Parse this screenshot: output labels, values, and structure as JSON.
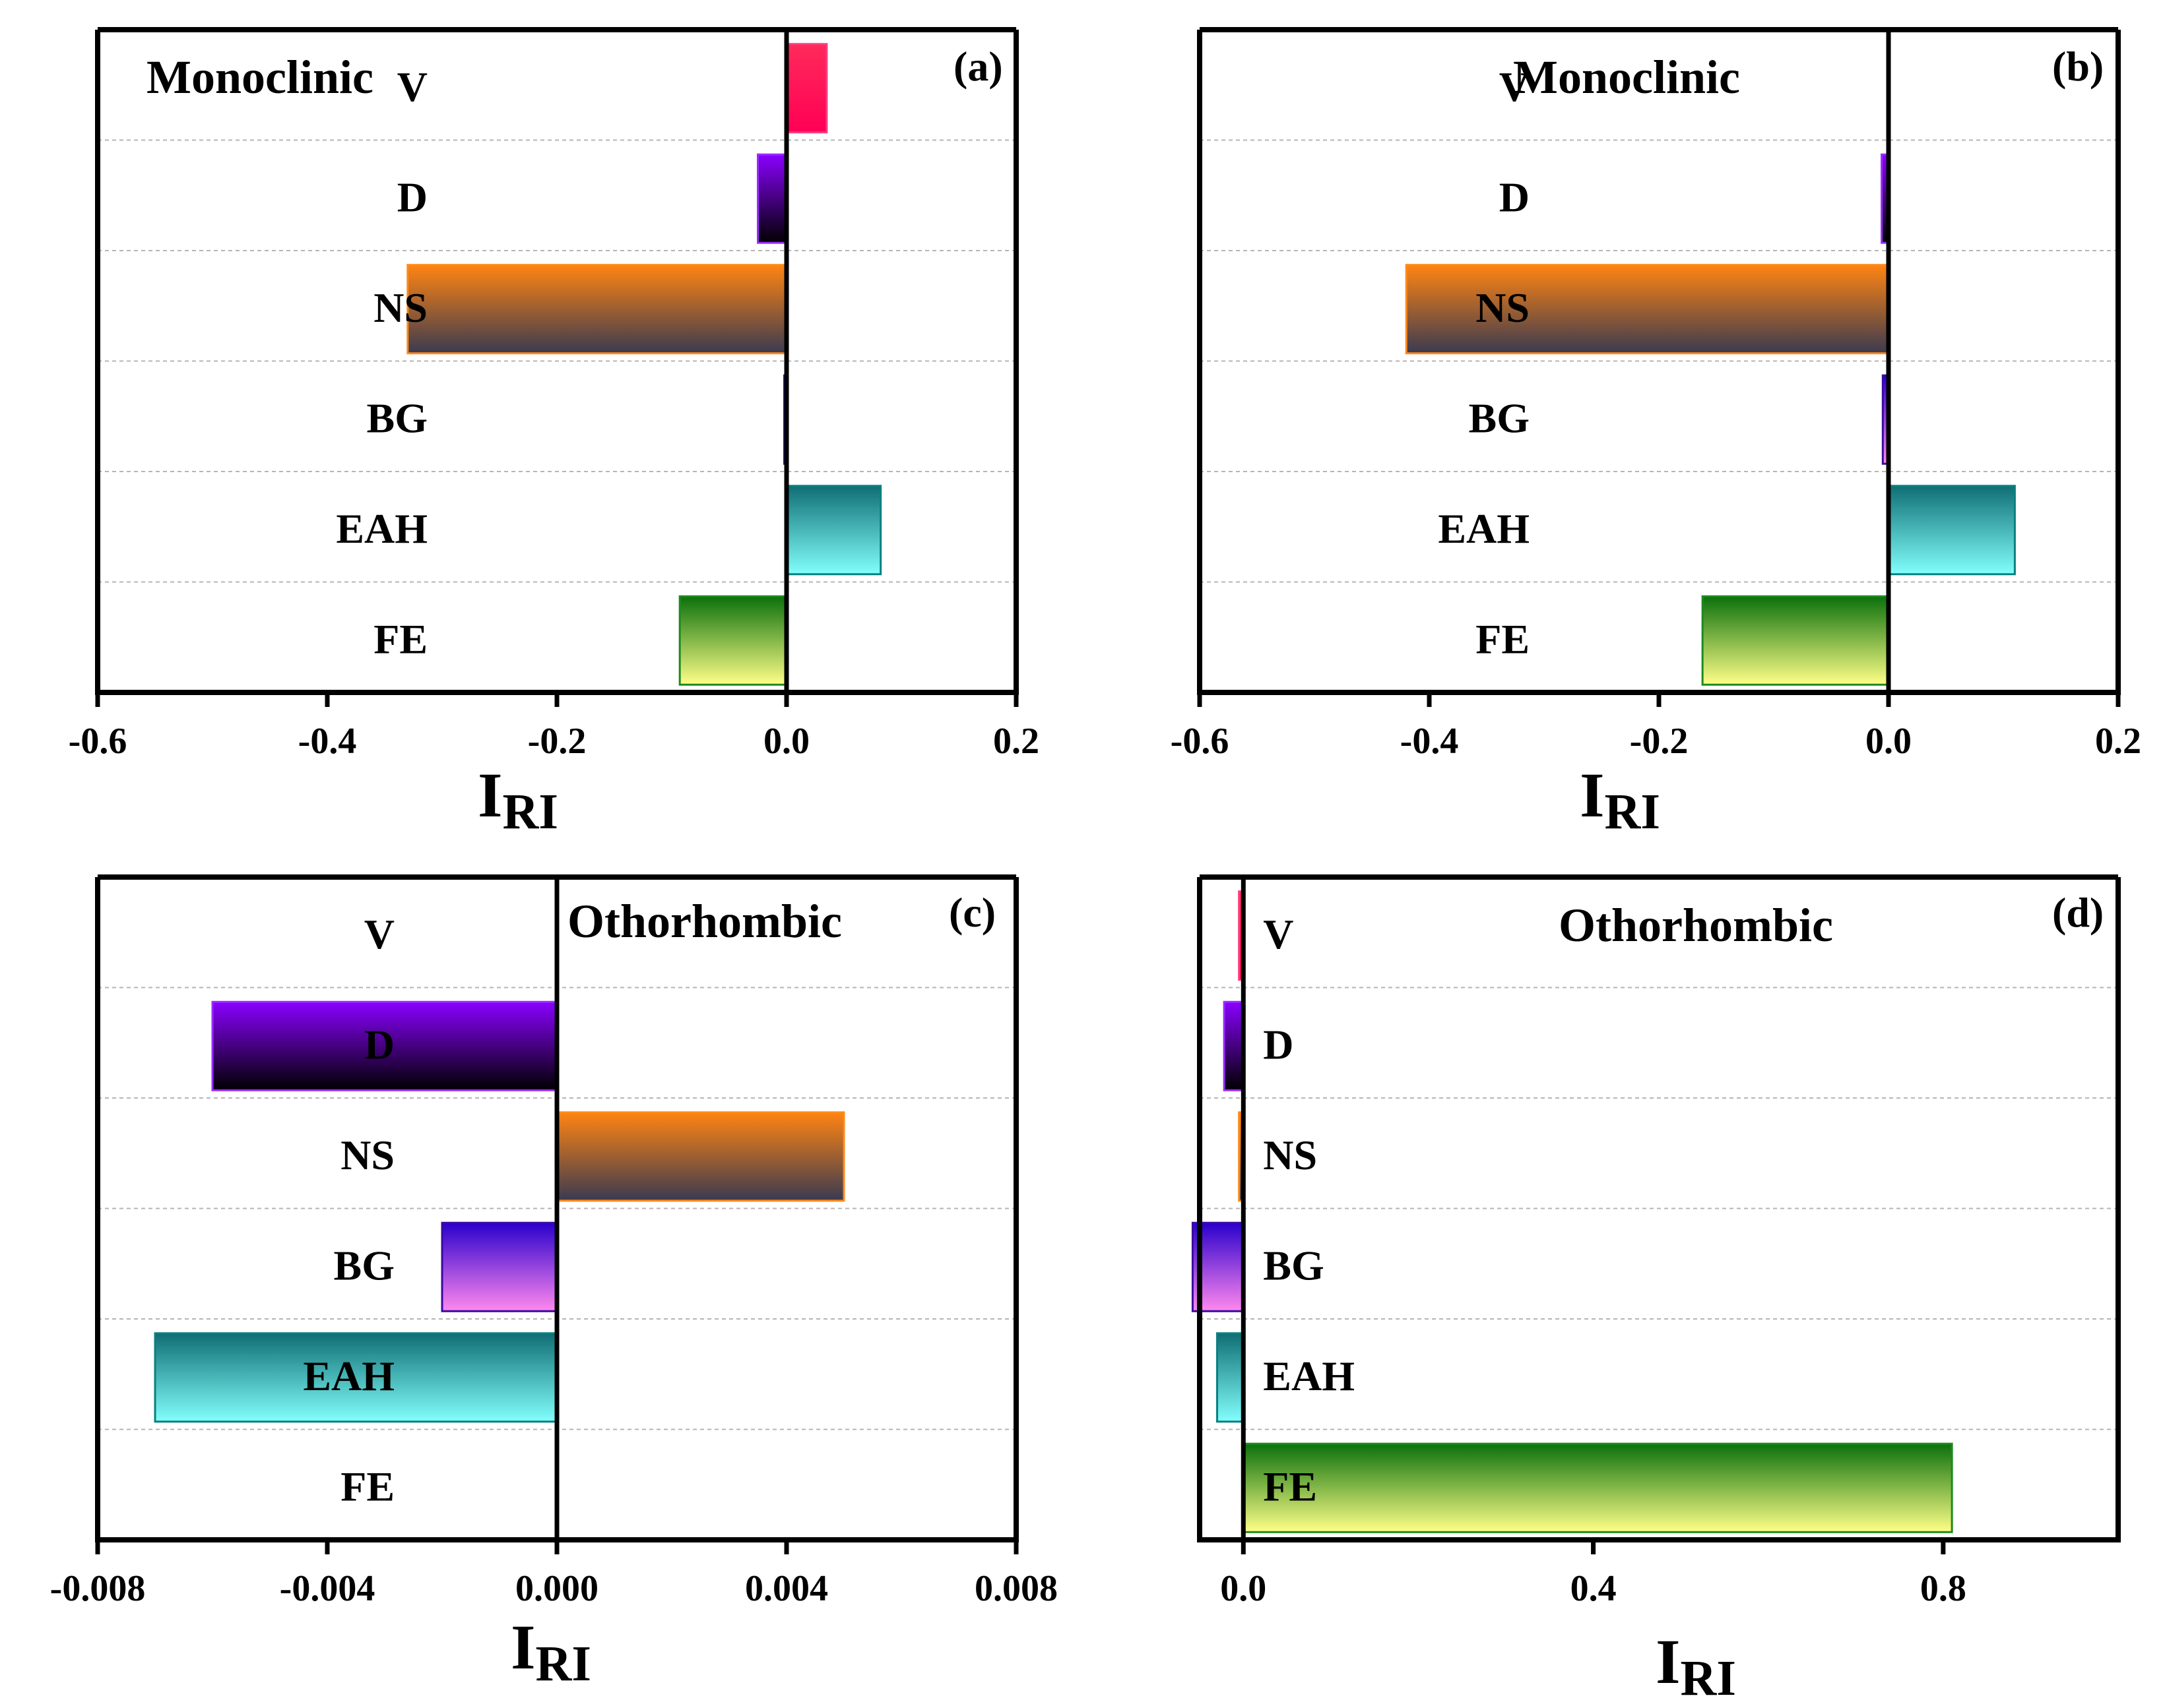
{
  "figure": {
    "categories": [
      "V",
      "D",
      "NS",
      "BG",
      "EAH",
      "FE"
    ]
  },
  "chart_data": [
    {
      "type": "bar",
      "orientation": "horizontal",
      "panel_label": "(a)",
      "title": "Monoclinic",
      "title_position": "top-left",
      "xlabel": "I",
      "xlabel_sub": "RI",
      "xlim": [
        -0.6,
        0.2
      ],
      "xticks": [
        -0.6,
        -0.4,
        -0.2,
        0.0,
        0.2
      ],
      "xtick_labels": [
        "-0.6",
        "-0.4",
        "-0.2",
        "0.0",
        "0.2"
      ],
      "categories": [
        "V",
        "D",
        "NS",
        "BG",
        "EAH",
        "FE"
      ],
      "values": [
        0.035,
        -0.025,
        -0.33,
        -0.002,
        0.082,
        -0.093
      ],
      "label_anchor": 0,
      "grid": "horizontal dashed between bars"
    },
    {
      "type": "bar",
      "orientation": "horizontal",
      "panel_label": "(b)",
      "title": "Monoclinic",
      "title_position": "top-center",
      "xlabel": "I",
      "xlabel_sub": "RI",
      "xlim": [
        -0.6,
        0.2
      ],
      "xticks": [
        -0.6,
        -0.4,
        -0.2,
        0.0,
        0.2
      ],
      "xtick_labels": [
        "-0.6",
        "-0.4",
        "-0.2",
        "0.0",
        "0.2"
      ],
      "categories": [
        "V",
        "D",
        "NS",
        "BG",
        "EAH",
        "FE"
      ],
      "values": [
        0.0,
        -0.006,
        -0.42,
        -0.005,
        0.11,
        -0.162
      ],
      "label_anchor": 0,
      "grid": "horizontal dashed between bars"
    },
    {
      "type": "bar",
      "orientation": "horizontal",
      "panel_label": "(c)",
      "title": "Othorhombic",
      "title_position": "top-right",
      "xlabel": "I",
      "xlabel_sub": "RI",
      "xlim": [
        -0.008,
        0.008
      ],
      "xticks": [
        -0.008,
        -0.004,
        0.0,
        0.004,
        0.008
      ],
      "xtick_labels": [
        "-0.008",
        "-0.004",
        "0.000",
        "0.004",
        "0.008"
      ],
      "categories": [
        "V",
        "D",
        "NS",
        "BG",
        "EAH",
        "FE"
      ],
      "values": [
        0.0,
        -0.006,
        0.005,
        -0.002,
        -0.007,
        0.0
      ],
      "label_anchor": -0.003,
      "grid": "horizontal dashed between bars"
    },
    {
      "type": "bar",
      "orientation": "horizontal",
      "panel_label": "(d)",
      "title": "Othorhombic",
      "title_position": "top-center",
      "xlabel": "I",
      "xlabel_sub": "RI",
      "xlim": [
        -0.05,
        1.0
      ],
      "xticks": [
        0.0,
        0.4,
        0.8
      ],
      "xtick_labels": [
        "0.0",
        "0.4",
        "0.8"
      ],
      "categories": [
        "V",
        "D",
        "NS",
        "BG",
        "EAH",
        "FE"
      ],
      "values": [
        -0.005,
        -0.022,
        -0.005,
        -0.058,
        -0.03,
        0.81
      ],
      "label_anchor": 0.08,
      "grid": "horizontal dashed between bars"
    }
  ],
  "colors": {
    "V": {
      "top": "#ff2a5a",
      "bottom": "#ff0055",
      "stroke": "#ff3c82"
    },
    "D": {
      "top": "#8a00ff",
      "bottom": "#000000",
      "stroke": "#9a2bff"
    },
    "NS": {
      "top": "#ff8412",
      "bottom": "#3a3a50",
      "stroke": "#ff8a1a"
    },
    "BG": {
      "top": "#2a00cc",
      "bottom": "#ff88ee",
      "stroke": "#3a0aa0"
    },
    "EAH": {
      "top": "#0f6e74",
      "bottom": "#82fffc",
      "stroke": "#0a8080"
    },
    "FE": {
      "top": "#0b700b",
      "bottom": "#ffff88",
      "stroke": "#1d8a1d"
    }
  }
}
